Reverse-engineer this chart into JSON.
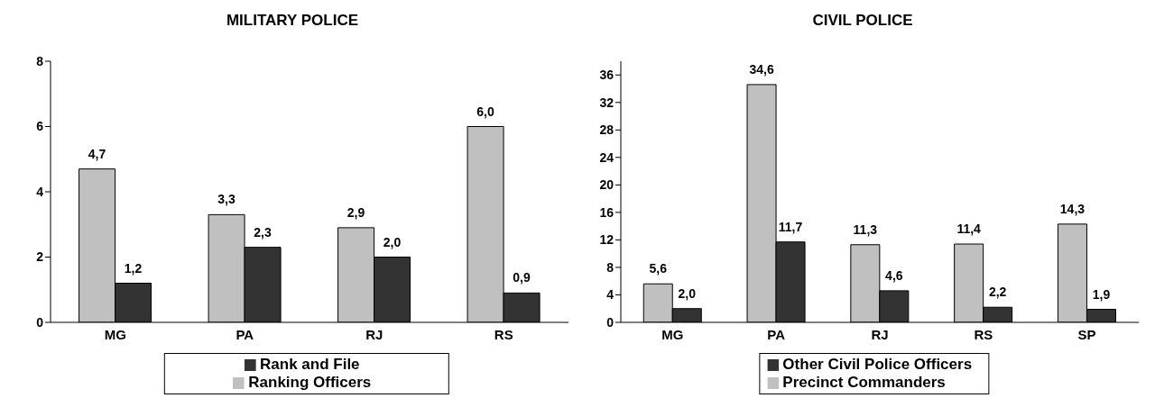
{
  "chart_data": [
    {
      "type": "bar",
      "title": "MILITARY POLICE",
      "categories": [
        "MG",
        "PA",
        "RJ",
        "RS"
      ],
      "ylim": [
        0,
        8
      ],
      "yticks": [
        0,
        2,
        4,
        6,
        8
      ],
      "grid": false,
      "legend": "bottom",
      "series": [
        {
          "name": "Ranking Officers",
          "color": "#c0c0c0",
          "values": [
            4.7,
            3.3,
            2.9,
            6.0
          ],
          "value_labels": [
            "4,7",
            "3,3",
            "2,9",
            "6,0"
          ]
        },
        {
          "name": "Rank and File",
          "color": "#333333",
          "values": [
            1.2,
            2.3,
            2.0,
            0.9
          ],
          "value_labels": [
            "1,2",
            "2,3",
            "2,0",
            "0,9"
          ]
        }
      ]
    },
    {
      "type": "bar",
      "title": "CIVIL POLICE",
      "categories": [
        "MG",
        "PA",
        "RJ",
        "RS",
        "SP"
      ],
      "ylim": [
        0,
        38
      ],
      "yticks": [
        0,
        4,
        8,
        12,
        16,
        20,
        24,
        28,
        32,
        36
      ],
      "grid": false,
      "legend": "bottom",
      "series": [
        {
          "name": "Precinct Commanders",
          "color": "#c0c0c0",
          "values": [
            5.6,
            34.6,
            11.3,
            11.4,
            14.3
          ],
          "value_labels": [
            "5,6",
            "34,6",
            "11,3",
            "11,4",
            "14,3"
          ]
        },
        {
          "name": "Other Civil Police Officers",
          "color": "#333333",
          "values": [
            2.0,
            11.7,
            4.6,
            2.2,
            1.9
          ],
          "value_labels": [
            "2,0",
            "11,7",
            "4,6",
            "2,2",
            "1,9"
          ]
        }
      ]
    }
  ]
}
